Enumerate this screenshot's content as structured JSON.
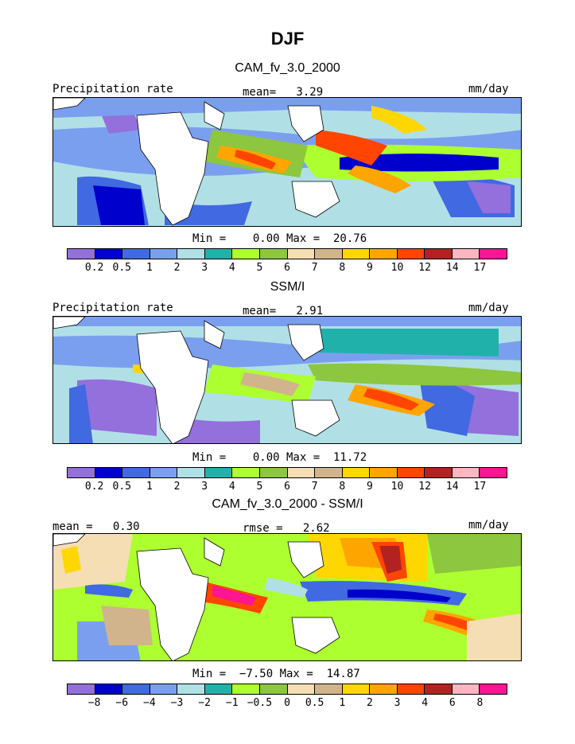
{
  "title": "DJF",
  "panels": [
    {
      "subtitle": "CAM_fv_3.0_2000",
      "left_label": "Precipitation rate",
      "center_label": "mean=   3.29",
      "units": "mm/day",
      "minmax": "Min =    0.00 Max =  20.76",
      "ticks": [
        "0.2",
        "0.5",
        "1",
        "2",
        "3",
        "4",
        "5",
        "6",
        "7",
        "8",
        "9",
        "10",
        "12",
        "14",
        "17"
      ]
    },
    {
      "subtitle": "SSM/I",
      "left_label": "Precipitation rate",
      "center_label": "mean=   2.91",
      "units": "mm/day",
      "minmax": "Min =    0.00 Max =  11.72",
      "ticks": [
        "0.2",
        "0.5",
        "1",
        "2",
        "3",
        "4",
        "5",
        "6",
        "7",
        "8",
        "9",
        "10",
        "12",
        "14",
        "17"
      ]
    },
    {
      "subtitle": "CAM_fv_3.0_2000 - SSM/I",
      "left_label": "mean =   0.30",
      "center_label": "rmse =   2.62",
      "units": "mm/day",
      "minmax": "Min =  −7.50 Max =  14.87",
      "ticks": [
        "−8",
        "−6",
        "−4",
        "−3",
        "−2",
        "−1",
        "−0.5",
        "0",
        "0.5",
        "1",
        "2",
        "3",
        "4",
        "6",
        "8"
      ]
    }
  ],
  "colorbar_colors": [
    "#9370DB",
    "#0000CD",
    "#4169E1",
    "#7B9FEF",
    "#B0E0E6",
    "#20B2AA",
    "#ADFF2F",
    "#8DC63F",
    "#F5DEB3",
    "#D2B48C",
    "#FFD700",
    "#FFA500",
    "#FF4500",
    "#B22222",
    "#FFB6C1",
    "#FF1493"
  ]
}
